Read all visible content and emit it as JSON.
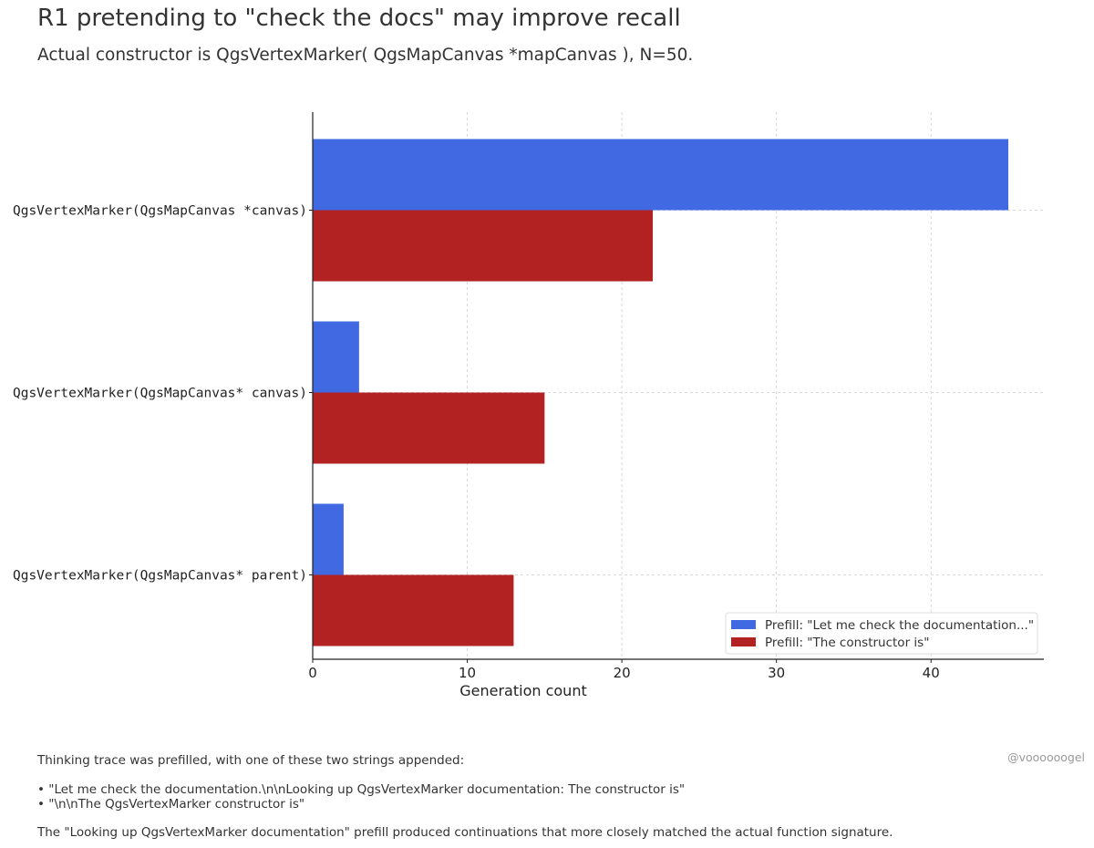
{
  "title": "R1 pretending to \"check the docs\" may improve recall",
  "subtitle": "Actual constructor is QgsVertexMarker( QgsMapCanvas *mapCanvas ), N=50.",
  "chart_data": {
    "type": "bar",
    "orientation": "horizontal",
    "categories": [
      "QgsVertexMarker(QgsMapCanvas *canvas)",
      "QgsVertexMarker(QgsMapCanvas* canvas)",
      "QgsVertexMarker(QgsMapCanvas* parent)"
    ],
    "series": [
      {
        "name": "Prefill: \"Let me check the documentation...\"",
        "color": "#4169e1",
        "values": [
          45,
          3,
          2
        ]
      },
      {
        "name": "Prefill: \"The constructor is\"",
        "color": "#b22222",
        "values": [
          22,
          15,
          13
        ]
      }
    ],
    "xlabel": "Generation count",
    "ylabel": "",
    "xlim": [
      0,
      47.3
    ],
    "xticks": [
      0,
      10,
      20,
      30,
      40
    ],
    "grid": true,
    "legend": "bottom-right"
  },
  "footer": {
    "intro": "Thinking trace was prefilled, with one of these two strings appended:",
    "bullets": [
      "• \"Let me check the documentation.\\n\\nLooking up QgsVertexMarker documentation: The constructor is\"",
      "• \"\\n\\nThe QgsVertexMarker constructor is\""
    ],
    "conclusion": "The \"Looking up QgsVertexMarker documentation\" prefill produced continuations that more closely matched the actual function signature."
  },
  "watermark": "@voooooogel"
}
